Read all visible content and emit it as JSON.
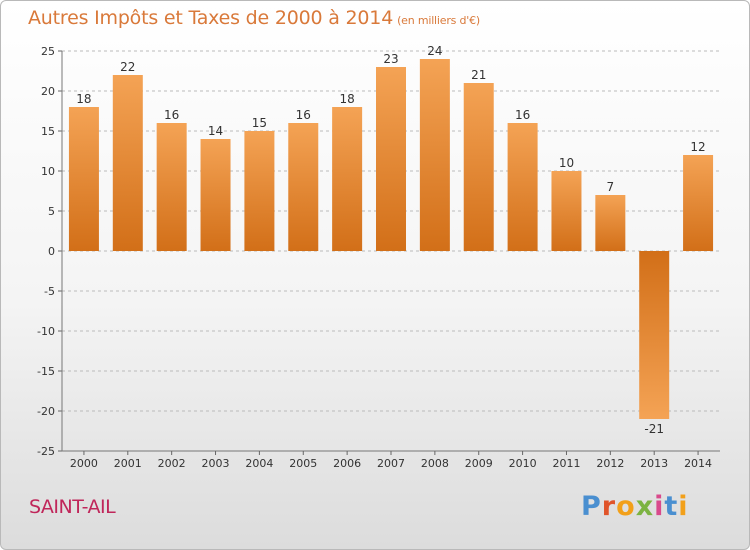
{
  "title": "Autres Impôts et Taxes de 2000 à 2014",
  "subtitle": "(en milliers d'€)",
  "commune": "SAINT-AIL",
  "logo": {
    "text": "Proxiti",
    "colors": [
      "#4a8fd0",
      "#e0542a",
      "#f2a01a",
      "#7cb342",
      "#d94a8c",
      "#4a8fd0",
      "#f2a01a"
    ]
  },
  "colors": {
    "title": "#d9793a",
    "commune": "#c0265a",
    "bar_light": "#f4a355",
    "bar_dark": "#d26f18",
    "grid": "#bbbbbb"
  },
  "chart_data": {
    "type": "bar",
    "categories": [
      "2000",
      "2001",
      "2002",
      "2003",
      "2004",
      "2005",
      "2006",
      "2007",
      "2008",
      "2009",
      "2010",
      "2011",
      "2012",
      "2013",
      "2014"
    ],
    "values": [
      18,
      22,
      16,
      14,
      15,
      16,
      18,
      23,
      24,
      21,
      16,
      10,
      7,
      -21,
      12
    ],
    "ylim": [
      -25,
      25
    ],
    "yticks": [
      -25,
      -20,
      -15,
      -10,
      -5,
      0,
      5,
      10,
      15,
      20,
      25
    ],
    "grid": "horizontal dashed",
    "xlabel": "",
    "ylabel": ""
  }
}
